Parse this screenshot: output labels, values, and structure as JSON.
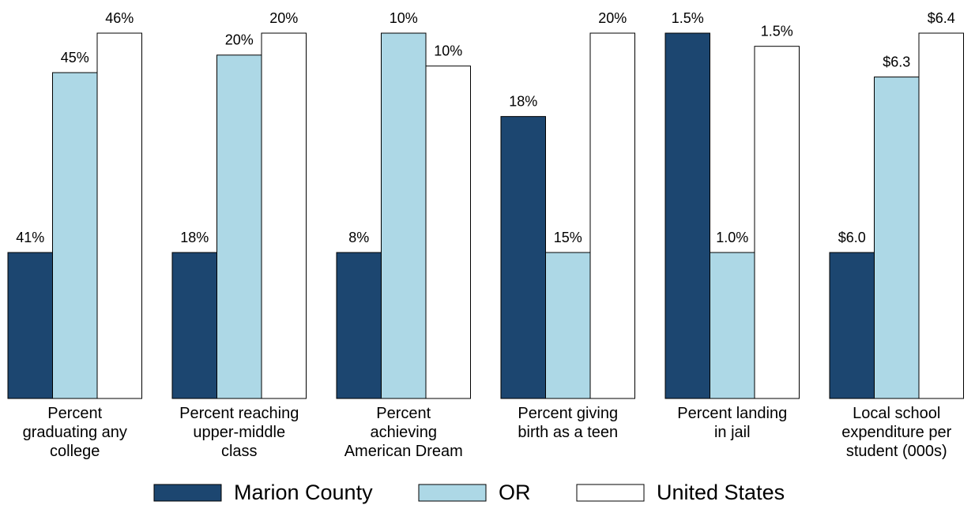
{
  "chart_data": {
    "type": "bar",
    "categories": [
      "Percent\ngraduating any\ncollege",
      "Percent reaching\nupper-middle\nclass",
      "Percent\nachieving\nAmerican Dream",
      "Percent giving\nbirth as a teen",
      "Percent landing\nin jail",
      "Local school\nexpenditure per\nstudent (000s)"
    ],
    "series": [
      {
        "name": "Marion County",
        "color": "#1c4670",
        "values": [
          41,
          18,
          8,
          18.1,
          1.5,
          6.0
        ],
        "value_labels": [
          "41%",
          "18%",
          "8%",
          "18%",
          "1.5%",
          "$6.0"
        ]
      },
      {
        "name": "OR",
        "color": "#add8e6",
        "values": [
          45.1,
          19.8,
          10,
          15,
          1.0,
          6.32
        ],
        "value_labels": [
          "45%",
          "20%",
          "10%",
          "15%",
          "1.0%",
          "$6.3"
        ]
      },
      {
        "name": "United States",
        "color": "#ffffff",
        "values": [
          46,
          20,
          9.7,
          20,
          1.47,
          6.4
        ],
        "value_labels": [
          "46%",
          "20%",
          "10%",
          "20%",
          "1.5%",
          "$6.4"
        ]
      }
    ],
    "legend": "bottom"
  }
}
